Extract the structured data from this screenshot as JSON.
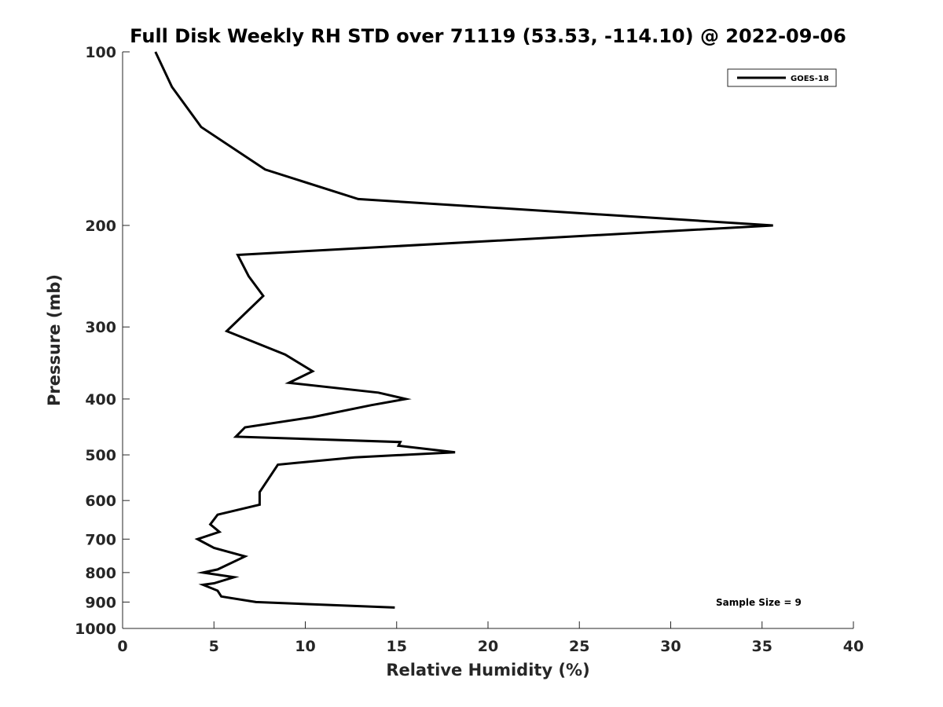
{
  "chart_data": {
    "type": "line",
    "title": "Full Disk Weekly RH STD over 71119 (53.53, -114.10) @ 2022-09-06",
    "xlabel": "Relative Humidity (%)",
    "ylabel": "Pressure (mb)",
    "xlim": [
      0,
      40
    ],
    "ylim": [
      100,
      1000
    ],
    "y_scale": "log",
    "y_reversed": true,
    "x_ticks": [
      "0",
      "5",
      "10",
      "15",
      "20",
      "25",
      "30",
      "35",
      "40"
    ],
    "y_ticks": [
      "100",
      "200",
      "300",
      "400",
      "500",
      "600",
      "700",
      "800",
      "900",
      "1000"
    ],
    "grid": false,
    "legend_position": "top-right",
    "annotation": "Sample Size = 9",
    "series": [
      {
        "name": "GOES-18",
        "color": "#000000",
        "x": [
          1.8,
          2.7,
          4.3,
          7.8,
          12.9,
          35.6,
          6.3,
          6.9,
          7.7,
          5.7,
          8.9,
          10.4,
          9.1,
          14.0,
          15.5,
          13.6,
          10.4,
          6.7,
          6.2,
          15.2,
          15.1,
          18.2,
          12.7,
          8.5,
          7.5,
          7.5,
          5.2,
          4.8,
          5.3,
          4.1,
          5.0,
          6.7,
          5.2,
          4.4,
          6.1,
          5.0,
          4.4,
          5.2,
          5.4,
          7.3,
          14.9
        ],
        "y": [
          100,
          115,
          135,
          160,
          180,
          200,
          225,
          245,
          265,
          305,
          335,
          358,
          375,
          390,
          400,
          410,
          430,
          448,
          465,
          475,
          482,
          495,
          505,
          520,
          580,
          610,
          635,
          660,
          680,
          700,
          725,
          750,
          790,
          800,
          815,
          835,
          840,
          860,
          880,
          900,
          920
        ]
      }
    ]
  }
}
